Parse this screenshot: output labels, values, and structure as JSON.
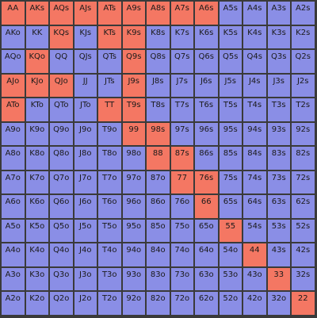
{
  "colors": {
    "in_range": "#f47763",
    "out_of_range": "#8a8ee6",
    "grid_line": "#3a3a3a"
  },
  "rows": [
    [
      "AA",
      "AKs",
      "AQs",
      "AJs",
      "ATs",
      "A9s",
      "A8s",
      "A7s",
      "A6s",
      "A5s",
      "A4s",
      "A3s",
      "A2s"
    ],
    [
      "AKo",
      "KK",
      "KQs",
      "KJs",
      "KTs",
      "K9s",
      "K8s",
      "K7s",
      "K6s",
      "K5s",
      "K4s",
      "K3s",
      "K2s"
    ],
    [
      "AQo",
      "KQo",
      "QQ",
      "QJs",
      "QTs",
      "Q9s",
      "Q8s",
      "Q7s",
      "Q6s",
      "Q5s",
      "Q4s",
      "Q3s",
      "Q2s"
    ],
    [
      "AJo",
      "KJo",
      "QJo",
      "JJ",
      "JTs",
      "J9s",
      "J8s",
      "J7s",
      "J6s",
      "J5s",
      "J4s",
      "J3s",
      "J2s"
    ],
    [
      "ATo",
      "KTo",
      "QTo",
      "JTo",
      "TT",
      "T9s",
      "T8s",
      "T7s",
      "T6s",
      "T5s",
      "T4s",
      "T3s",
      "T2s"
    ],
    [
      "A9o",
      "K9o",
      "Q9o",
      "J9o",
      "T9o",
      "99",
      "98s",
      "97s",
      "96s",
      "95s",
      "94s",
      "93s",
      "92s"
    ],
    [
      "A8o",
      "K8o",
      "Q8o",
      "J8o",
      "T8o",
      "98o",
      "88",
      "87s",
      "86s",
      "85s",
      "84s",
      "83s",
      "82s"
    ],
    [
      "A7o",
      "K7o",
      "Q7o",
      "J7o",
      "T7o",
      "97o",
      "87o",
      "77",
      "76s",
      "75s",
      "74s",
      "73s",
      "72s"
    ],
    [
      "A6o",
      "K6o",
      "Q6o",
      "J6o",
      "T6o",
      "96o",
      "86o",
      "76o",
      "66",
      "65s",
      "64s",
      "63s",
      "62s"
    ],
    [
      "A5o",
      "K5o",
      "Q5o",
      "J5o",
      "T5o",
      "95o",
      "85o",
      "75o",
      "65o",
      "55",
      "54s",
      "53s",
      "52s"
    ],
    [
      "A4o",
      "K4o",
      "Q4o",
      "J4o",
      "T4o",
      "94o",
      "84o",
      "74o",
      "64o",
      "54o",
      "44",
      "43s",
      "42s"
    ],
    [
      "A3o",
      "K3o",
      "Q3o",
      "J3o",
      "T3o",
      "93o",
      "83o",
      "73o",
      "63o",
      "53o",
      "43o",
      "33",
      "32s"
    ],
    [
      "A2o",
      "K2o",
      "Q2o",
      "J2o",
      "T2o",
      "92o",
      "82o",
      "72o",
      "62o",
      "52o",
      "42o",
      "32o",
      "22"
    ]
  ],
  "range": [
    [
      1,
      1,
      1,
      1,
      1,
      1,
      1,
      1,
      1,
      0,
      0,
      0,
      0
    ],
    [
      0,
      0,
      1,
      0,
      1,
      1,
      0,
      0,
      0,
      0,
      0,
      0,
      0
    ],
    [
      0,
      1,
      0,
      0,
      0,
      1,
      0,
      0,
      0,
      0,
      0,
      0,
      0
    ],
    [
      1,
      1,
      1,
      0,
      0,
      1,
      0,
      0,
      0,
      0,
      0,
      0,
      0
    ],
    [
      1,
      0,
      0,
      0,
      1,
      1,
      0,
      0,
      0,
      0,
      0,
      0,
      0
    ],
    [
      0,
      0,
      0,
      0,
      0,
      1,
      1,
      0,
      0,
      0,
      0,
      0,
      0
    ],
    [
      0,
      0,
      0,
      0,
      0,
      0,
      1,
      1,
      0,
      0,
      0,
      0,
      0
    ],
    [
      0,
      0,
      0,
      0,
      0,
      0,
      0,
      1,
      1,
      0,
      0,
      0,
      0
    ],
    [
      0,
      0,
      0,
      0,
      0,
      0,
      0,
      0,
      1,
      0,
      0,
      0,
      0
    ],
    [
      0,
      0,
      0,
      0,
      0,
      0,
      0,
      0,
      0,
      1,
      0,
      0,
      0
    ],
    [
      0,
      0,
      0,
      0,
      0,
      0,
      0,
      0,
      0,
      0,
      1,
      0,
      0
    ],
    [
      0,
      0,
      0,
      0,
      0,
      0,
      0,
      0,
      0,
      0,
      0,
      1,
      0
    ],
    [
      0,
      0,
      0,
      0,
      0,
      0,
      0,
      0,
      0,
      0,
      0,
      0,
      1
    ]
  ]
}
